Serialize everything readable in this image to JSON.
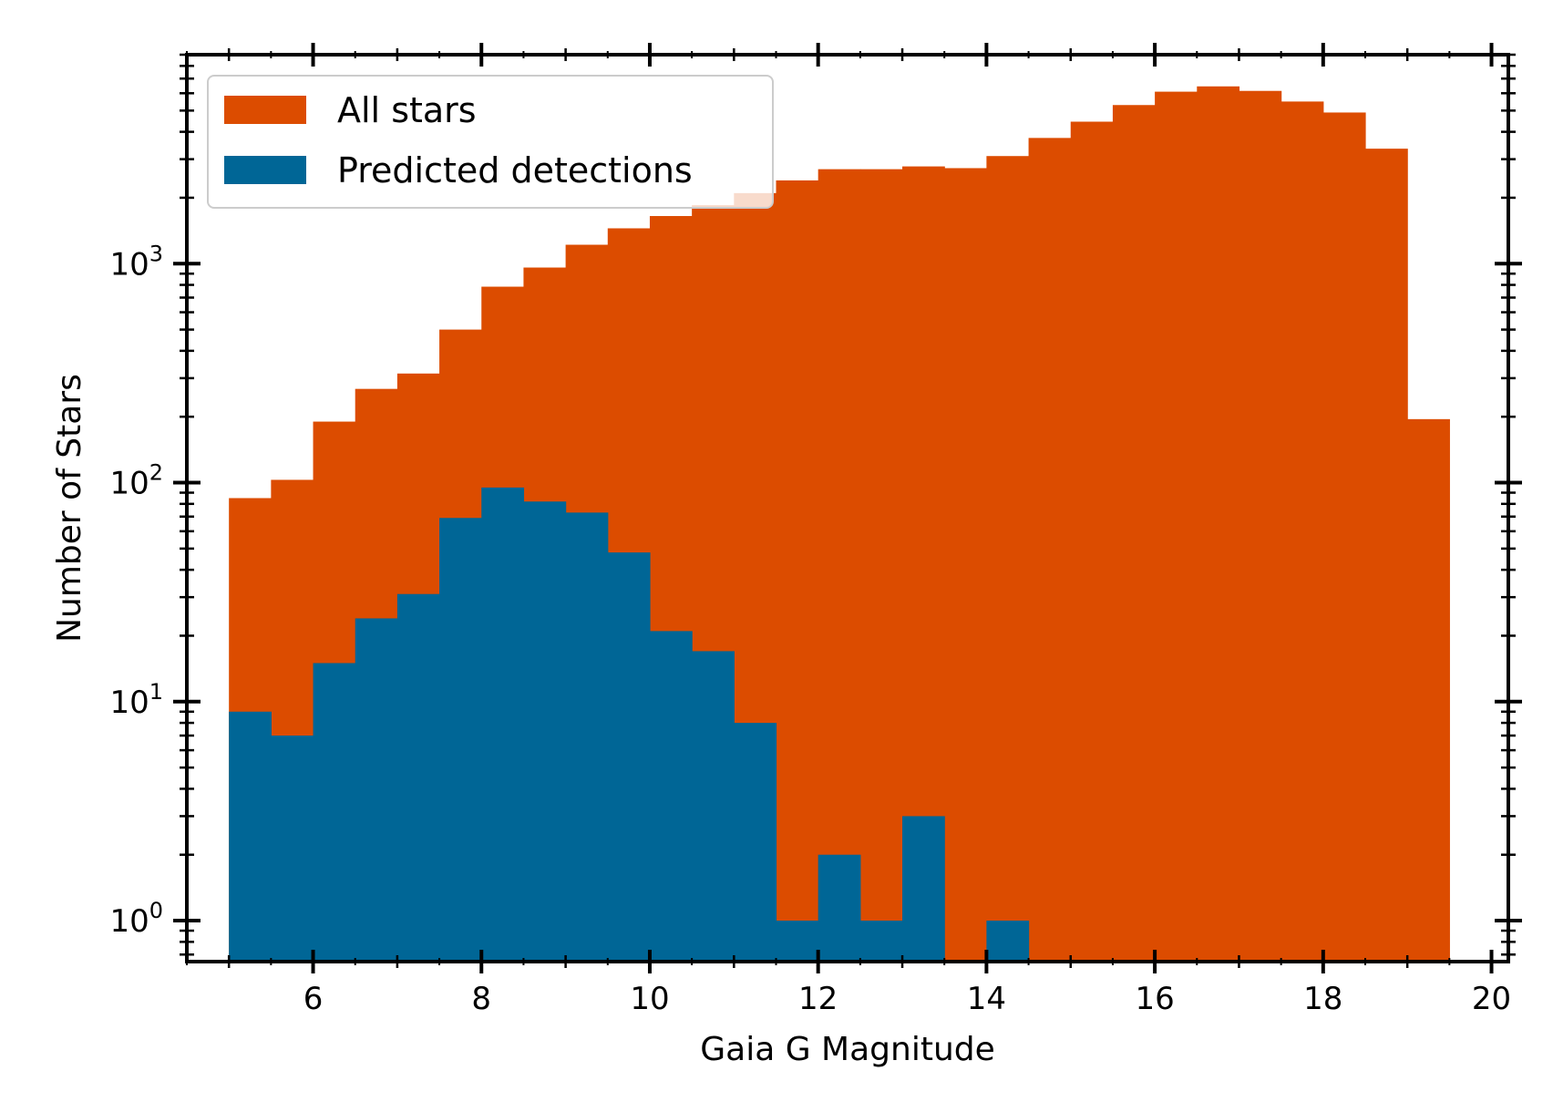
{
  "chart_data": {
    "type": "bar",
    "title": "",
    "xlabel": "Gaia G Magnitude",
    "ylabel": "Number of Stars",
    "xlim": [
      4.5,
      20.2
    ],
    "ylim": [
      0.65,
      9000
    ],
    "y_scale": "log",
    "x_ticks": [
      6,
      8,
      10,
      12,
      14,
      16,
      18,
      20
    ],
    "y_ticks": [
      {
        "value": 1,
        "base": "10",
        "exp": "0"
      },
      {
        "value": 10,
        "base": "10",
        "exp": "1"
      },
      {
        "value": 100,
        "base": "10",
        "exp": "2"
      },
      {
        "value": 1000,
        "base": "10",
        "exp": "3"
      }
    ],
    "bin_edges": [
      5.0,
      5.5,
      6.0,
      6.5,
      7.0,
      7.5,
      8.0,
      8.5,
      9.0,
      9.5,
      10.0,
      10.5,
      11.0,
      11.5,
      12.0,
      12.5,
      13.0,
      13.5,
      14.0,
      14.5,
      15.0,
      15.5,
      16.0,
      16.5,
      17.0,
      17.5,
      18.0,
      18.5,
      19.0,
      19.5
    ],
    "legend_position": "top-left",
    "grid": false,
    "series": [
      {
        "name": "All stars",
        "color": "#DC4C00",
        "values": [
          85,
          103,
          190,
          268,
          315,
          500,
          785,
          960,
          1220,
          1450,
          1650,
          1850,
          2100,
          2400,
          2700,
          2700,
          2780,
          2730,
          3100,
          3750,
          4450,
          5300,
          6100,
          6450,
          6150,
          5500,
          4900,
          3350,
          195
        ]
      },
      {
        "name": "Predicted detections",
        "color": "#006696",
        "values": [
          9,
          7,
          15,
          24,
          31,
          69,
          95,
          82,
          73,
          48,
          21,
          17,
          8,
          1,
          2,
          1,
          3,
          0,
          1,
          0,
          0,
          0,
          0,
          0,
          0,
          0,
          0,
          0,
          0
        ]
      }
    ]
  }
}
